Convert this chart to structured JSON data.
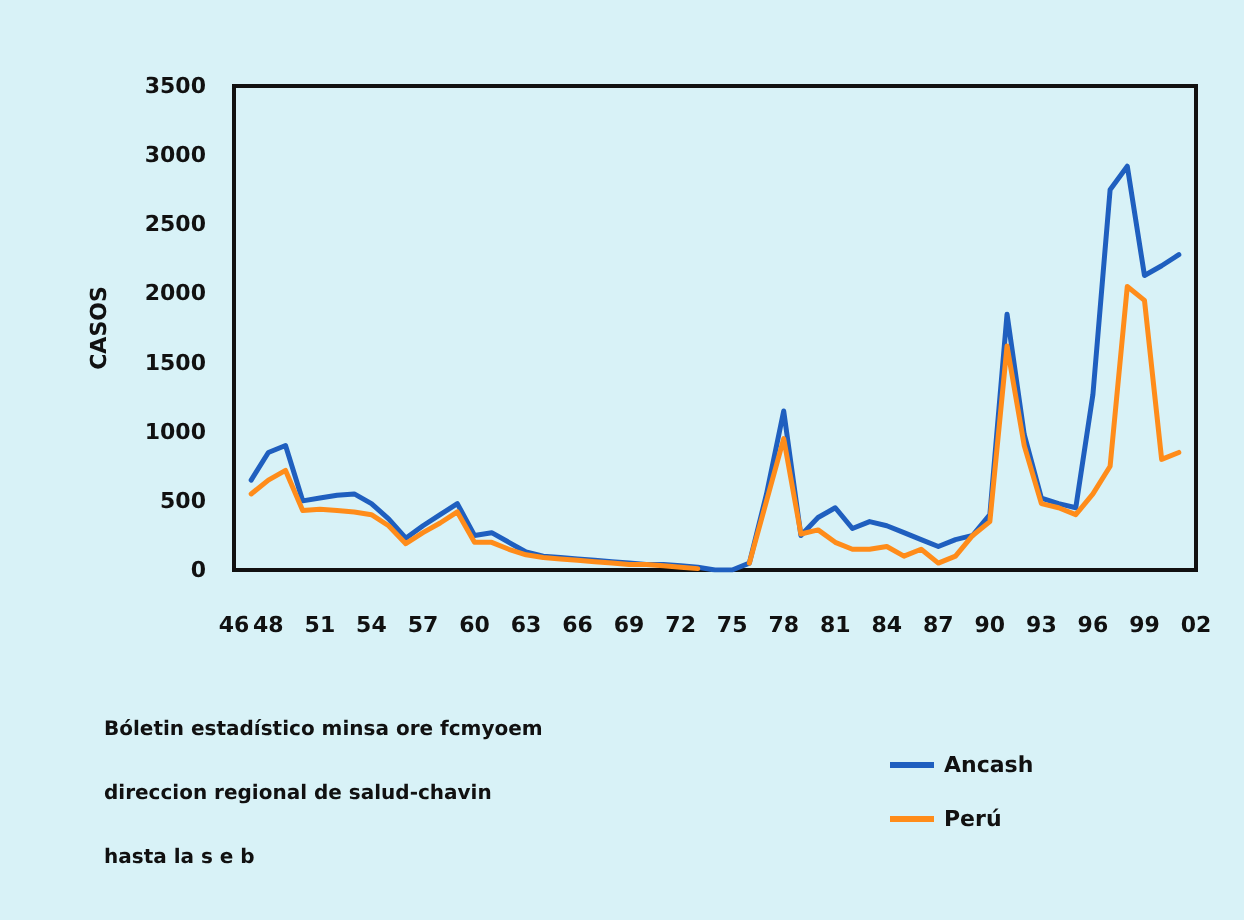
{
  "chart_data": {
    "type": "line",
    "ylabel": "CASOS",
    "categories": [
      "46",
      null,
      "48",
      null,
      null,
      "51",
      null,
      null,
      "54",
      null,
      null,
      "57",
      null,
      null,
      "60",
      null,
      null,
      "63",
      null,
      null,
      "66",
      null,
      null,
      "69",
      null,
      null,
      "72",
      null,
      null,
      "75",
      null,
      null,
      "78",
      null,
      null,
      "81",
      null,
      null,
      "84",
      null,
      null,
      "87",
      null,
      null,
      "90",
      null,
      null,
      "93",
      null,
      null,
      "96",
      null,
      null,
      "99",
      null,
      null,
      "02"
    ],
    "series": [
      {
        "name": "Ancash",
        "color": "#1f5fbf",
        "values": [
          null,
          650,
          850,
          900,
          500,
          520,
          540,
          550,
          480,
          370,
          230,
          320,
          400,
          480,
          250,
          270,
          200,
          130,
          100,
          90,
          80,
          70,
          60,
          50,
          40,
          40,
          30,
          20,
          0,
          0,
          50,
          550,
          1150,
          250,
          380,
          450,
          300,
          350,
          320,
          270,
          220,
          170,
          220,
          250,
          400,
          1850,
          980,
          520,
          480,
          450,
          1270,
          2750,
          2920,
          2130,
          2200,
          2280,
          null
        ]
      },
      {
        "name": "Perú",
        "color": "#ff8c1a",
        "values": [
          null,
          550,
          650,
          720,
          430,
          440,
          430,
          420,
          400,
          320,
          190,
          270,
          340,
          420,
          200,
          200,
          150,
          110,
          90,
          80,
          70,
          60,
          50,
          40,
          40,
          30,
          20,
          10,
          null,
          null,
          50,
          500,
          950,
          260,
          290,
          200,
          150,
          150,
          170,
          100,
          150,
          50,
          100,
          250,
          350,
          1620,
          900,
          480,
          450,
          400,
          550,
          750,
          2050,
          1950,
          800,
          850,
          null
        ]
      }
    ],
    "ylim": [
      0,
      3500
    ],
    "yticks": [
      0,
      500,
      1000,
      1500,
      2000,
      2500,
      3000,
      3500
    ],
    "grid": false,
    "legend": "bottom right",
    "marker": "none",
    "line_style": "solid",
    "annotations": [
      "Bóletin estadístico minsa ore fcmyoem",
      "direccion regional de salud-chavin",
      "hasta la s e b"
    ]
  }
}
